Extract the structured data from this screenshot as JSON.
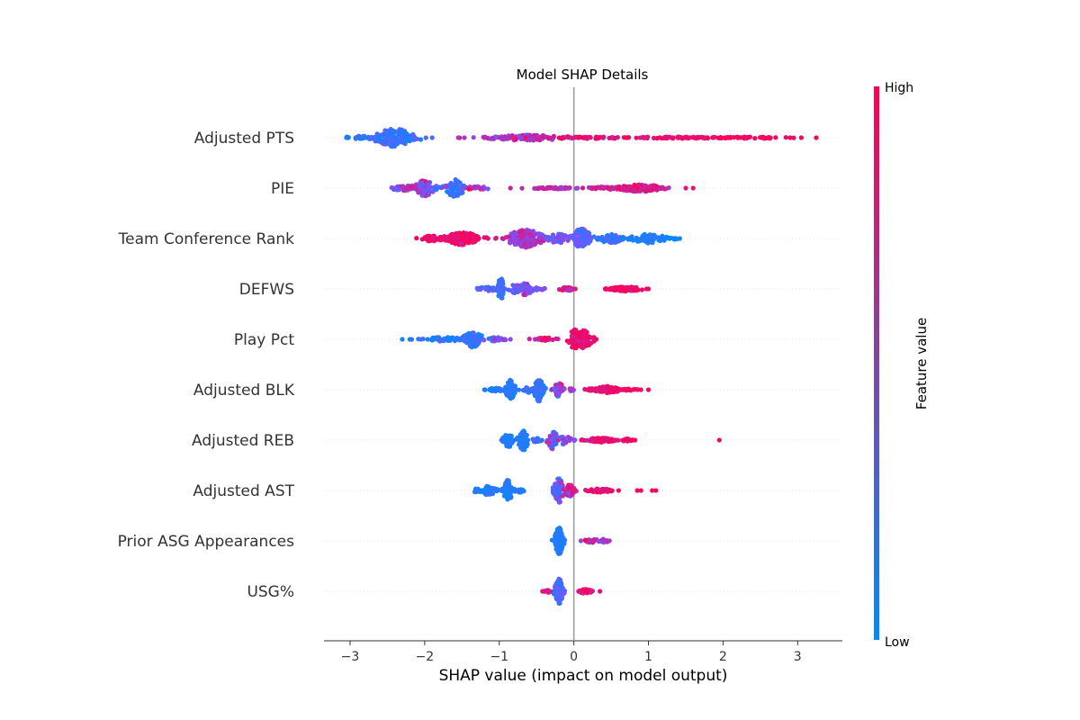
{
  "chart_data": {
    "type": "scatter",
    "subtype": "shap-beeswarm",
    "title": "Model SHAP Details",
    "xlabel": "SHAP value (impact on model output)",
    "ylabel": "",
    "xlim": [
      -3.35,
      3.6
    ],
    "xticks": [
      -3,
      -2,
      -1,
      0,
      1,
      2,
      3
    ],
    "xtick_labels": [
      "−3",
      "−2",
      "−1",
      "0",
      "1",
      "2",
      "3"
    ],
    "grid": false,
    "colorbar": {
      "label": "Feature value",
      "high_label": "High",
      "low_label": "Low",
      "low_color": "#008bfb",
      "high_color": "#ff0052"
    },
    "features": [
      {
        "name": "Adjusted PTS",
        "clusters": [
          {
            "center": -2.4,
            "spread": 0.25,
            "count": 150,
            "color_mean": 0.25,
            "color_sd": 0.12,
            "height": 20
          },
          {
            "center": -2.85,
            "spread": 0.2,
            "count": 30,
            "color_mean": 0.15,
            "color_sd": 0.1,
            "height": 4
          },
          {
            "center": -0.6,
            "spread": 0.5,
            "count": 110,
            "color_mean": 0.72,
            "color_sd": 0.12,
            "height": 6
          },
          {
            "center": 0.3,
            "spread": 0.55,
            "count": 50,
            "color_mean": 0.88,
            "color_sd": 0.07,
            "height": 2
          },
          {
            "center": 1.4,
            "spread": 0.7,
            "count": 70,
            "color_mean": 0.93,
            "color_sd": 0.05,
            "height": 2
          },
          {
            "center": 2.4,
            "spread": 0.45,
            "count": 40,
            "color_mean": 0.95,
            "color_sd": 0.04,
            "height": 2
          }
        ],
        "points": [
          {
            "x": 3.05,
            "c": 0.97
          },
          {
            "x": 3.25,
            "c": 0.97
          },
          {
            "x": 2.9,
            "c": 0.95
          },
          {
            "x": -0.7,
            "c": 0.6
          },
          {
            "x": -1.2,
            "c": 0.7
          },
          {
            "x": -1.55,
            "c": 0.65
          },
          {
            "x": -3.05,
            "c": 0.1
          },
          {
            "x": -1.9,
            "c": 0.3
          }
        ]
      },
      {
        "name": "PIE",
        "clusters": [
          {
            "center": -1.6,
            "spread": 0.12,
            "count": 60,
            "color_mean": 0.25,
            "color_sd": 0.12,
            "height": 20
          },
          {
            "center": -2.0,
            "spread": 0.12,
            "count": 60,
            "color_mean": 0.55,
            "color_sd": 0.2,
            "height": 18
          },
          {
            "center": -2.25,
            "spread": 0.2,
            "count": 35,
            "color_mean": 0.55,
            "color_sd": 0.2,
            "height": 6
          },
          {
            "center": -1.3,
            "spread": 0.15,
            "count": 20,
            "color_mean": 0.7,
            "color_sd": 0.15,
            "height": 4
          },
          {
            "center": -0.3,
            "spread": 0.3,
            "count": 50,
            "color_mean": 0.75,
            "color_sd": 0.1,
            "height": 2
          },
          {
            "center": 0.9,
            "spread": 0.3,
            "count": 150,
            "color_mean": 0.85,
            "color_sd": 0.08,
            "height": 8
          },
          {
            "center": 0.4,
            "spread": 0.2,
            "count": 25,
            "color_mean": 0.82,
            "color_sd": 0.08,
            "height": 3
          }
        ],
        "points": [
          {
            "x": 1.6,
            "c": 0.9
          },
          {
            "x": 1.5,
            "c": 0.88
          },
          {
            "x": -0.85,
            "c": 0.8
          },
          {
            "x": 0.25,
            "c": 0.8
          },
          {
            "x": -2.4,
            "c": 0.45
          }
        ]
      },
      {
        "name": "Team Conference Rank",
        "clusters": [
          {
            "center": -1.5,
            "spread": 0.22,
            "count": 180,
            "color_mean": 0.93,
            "color_sd": 0.05,
            "height": 14
          },
          {
            "center": -1.9,
            "spread": 0.15,
            "count": 40,
            "color_mean": 0.92,
            "color_sd": 0.05,
            "height": 6
          },
          {
            "center": -0.65,
            "spread": 0.22,
            "count": 150,
            "color_mean": 0.67,
            "color_sd": 0.1,
            "height": 20
          },
          {
            "center": -0.2,
            "spread": 0.15,
            "count": 50,
            "color_mean": 0.48,
            "color_sd": 0.1,
            "height": 10
          },
          {
            "center": 0.1,
            "spread": 0.12,
            "count": 80,
            "color_mean": 0.35,
            "color_sd": 0.1,
            "height": 22
          },
          {
            "center": 0.5,
            "spread": 0.15,
            "count": 50,
            "color_mean": 0.2,
            "color_sd": 0.1,
            "height": 10
          },
          {
            "center": 1.0,
            "spread": 0.22,
            "count": 70,
            "color_mean": 0.1,
            "color_sd": 0.06,
            "height": 10
          },
          {
            "center": 1.3,
            "spread": 0.08,
            "count": 10,
            "color_mean": 0.05,
            "color_sd": 0.05,
            "height": 3
          }
        ],
        "points": [
          {
            "x": 1.42,
            "c": 0.05
          },
          {
            "x": -1.05,
            "c": 0.85
          },
          {
            "x": -1.15,
            "c": 0.9
          },
          {
            "x": -2.0,
            "c": 0.95
          }
        ]
      },
      {
        "name": "DEFWS",
        "clusters": [
          {
            "center": -0.98,
            "spread": 0.04,
            "count": 50,
            "color_mean": 0.25,
            "color_sd": 0.08,
            "height": 24
          },
          {
            "center": -1.15,
            "spread": 0.12,
            "count": 30,
            "color_mean": 0.3,
            "color_sd": 0.12,
            "height": 5
          },
          {
            "center": -0.65,
            "spread": 0.08,
            "count": 40,
            "color_mean": 0.5,
            "color_sd": 0.12,
            "height": 14
          },
          {
            "center": -0.78,
            "spread": 0.08,
            "count": 20,
            "color_mean": 0.45,
            "color_sd": 0.12,
            "height": 10
          },
          {
            "center": -0.5,
            "spread": 0.1,
            "count": 15,
            "color_mean": 0.55,
            "color_sd": 0.1,
            "height": 3
          },
          {
            "center": -0.1,
            "spread": 0.1,
            "count": 25,
            "color_mean": 0.85,
            "color_sd": 0.08,
            "height": 4
          },
          {
            "center": 0.7,
            "spread": 0.2,
            "count": 100,
            "color_mean": 0.94,
            "color_sd": 0.04,
            "height": 5
          }
        ],
        "points": [
          {
            "x": 1.0,
            "c": 0.95
          },
          {
            "x": 0.42,
            "c": 0.93
          },
          {
            "x": 0.02,
            "c": 0.85
          }
        ]
      },
      {
        "name": "Play Pct",
        "clusters": [
          {
            "center": -1.35,
            "spread": 0.12,
            "count": 80,
            "color_mean": 0.25,
            "color_sd": 0.12,
            "height": 18
          },
          {
            "center": -1.75,
            "spread": 0.22,
            "count": 50,
            "color_mean": 0.15,
            "color_sd": 0.1,
            "height": 5
          },
          {
            "center": -1.05,
            "spread": 0.12,
            "count": 25,
            "color_mean": 0.4,
            "color_sd": 0.15,
            "height": 5
          },
          {
            "center": -0.4,
            "spread": 0.15,
            "count": 25,
            "color_mean": 0.82,
            "color_sd": 0.1,
            "height": 4
          },
          {
            "center": 0.0,
            "spread": 0.06,
            "count": 40,
            "color_mean": 0.92,
            "color_sd": 0.05,
            "height": 24
          },
          {
            "center": 0.12,
            "spread": 0.12,
            "count": 120,
            "color_mean": 0.9,
            "color_sd": 0.06,
            "height": 20
          }
        ],
        "points": [
          {
            "x": -2.3,
            "c": 0.05
          },
          {
            "x": -2.2,
            "c": 0.1
          },
          {
            "x": -0.85,
            "c": 0.55
          },
          {
            "x": 0.3,
            "c": 0.95
          },
          {
            "x": -2.05,
            "c": 0.3
          }
        ]
      },
      {
        "name": "Adjusted BLK",
        "clusters": [
          {
            "center": -0.85,
            "spread": 0.06,
            "count": 60,
            "color_mean": 0.12,
            "color_sd": 0.07,
            "height": 22
          },
          {
            "center": -1.05,
            "spread": 0.1,
            "count": 30,
            "color_mean": 0.12,
            "color_sd": 0.07,
            "height": 4
          },
          {
            "center": -0.47,
            "spread": 0.06,
            "count": 60,
            "color_mean": 0.18,
            "color_sd": 0.08,
            "height": 26
          },
          {
            "center": -0.6,
            "spread": 0.08,
            "count": 20,
            "color_mean": 0.2,
            "color_sd": 0.08,
            "height": 6
          },
          {
            "center": -0.2,
            "spread": 0.06,
            "count": 40,
            "color_mean": 0.55,
            "color_sd": 0.2,
            "height": 16
          },
          {
            "center": -0.05,
            "spread": 0.06,
            "count": 10,
            "color_mean": 0.6,
            "color_sd": 0.15,
            "height": 3
          },
          {
            "center": 0.45,
            "spread": 0.15,
            "count": 60,
            "color_mean": 0.92,
            "color_sd": 0.05,
            "height": 8
          },
          {
            "center": 0.25,
            "spread": 0.1,
            "count": 15,
            "color_mean": 0.9,
            "color_sd": 0.05,
            "height": 3
          },
          {
            "center": 0.75,
            "spread": 0.1,
            "count": 15,
            "color_mean": 0.93,
            "color_sd": 0.04,
            "height": 2
          }
        ],
        "points": [
          {
            "x": 1.0,
            "c": 0.95
          },
          {
            "x": 0.9,
            "c": 0.93
          },
          {
            "x": -1.2,
            "c": 0.1
          }
        ]
      },
      {
        "name": "Adjusted REB",
        "clusters": [
          {
            "center": -0.68,
            "spread": 0.06,
            "count": 45,
            "color_mean": 0.12,
            "color_sd": 0.07,
            "height": 24
          },
          {
            "center": -0.88,
            "spread": 0.06,
            "count": 30,
            "color_mean": 0.12,
            "color_sd": 0.07,
            "height": 16
          },
          {
            "center": -0.5,
            "spread": 0.08,
            "count": 15,
            "color_mean": 0.25,
            "color_sd": 0.1,
            "height": 4
          },
          {
            "center": -0.28,
            "spread": 0.06,
            "count": 40,
            "color_mean": 0.45,
            "color_sd": 0.2,
            "height": 22
          },
          {
            "center": -0.12,
            "spread": 0.08,
            "count": 30,
            "color_mean": 0.6,
            "color_sd": 0.15,
            "height": 10
          },
          {
            "center": 0.35,
            "spread": 0.18,
            "count": 60,
            "color_mean": 0.92,
            "color_sd": 0.05,
            "height": 5
          },
          {
            "center": 0.7,
            "spread": 0.08,
            "count": 15,
            "color_mean": 0.93,
            "color_sd": 0.05,
            "height": 3
          }
        ],
        "points": [
          {
            "x": 1.95,
            "c": 0.95
          },
          {
            "x": 0.82,
            "c": 0.95
          },
          {
            "x": 0.1,
            "c": 0.9
          }
        ]
      },
      {
        "name": "Adjusted AST",
        "clusters": [
          {
            "center": -0.88,
            "spread": 0.06,
            "count": 60,
            "color_mean": 0.12,
            "color_sd": 0.07,
            "height": 24
          },
          {
            "center": -1.15,
            "spread": 0.1,
            "count": 50,
            "color_mean": 0.12,
            "color_sd": 0.07,
            "height": 10
          },
          {
            "center": -1.3,
            "spread": 0.06,
            "count": 10,
            "color_mean": 0.1,
            "color_sd": 0.06,
            "height": 4
          },
          {
            "center": -0.72,
            "spread": 0.05,
            "count": 10,
            "color_mean": 0.2,
            "color_sd": 0.1,
            "height": 5
          },
          {
            "center": -0.2,
            "spread": 0.06,
            "count": 70,
            "color_mean": 0.45,
            "color_sd": 0.2,
            "height": 28
          },
          {
            "center": -0.05,
            "spread": 0.06,
            "count": 30,
            "color_mean": 0.8,
            "color_sd": 0.12,
            "height": 14
          },
          {
            "center": 0.35,
            "spread": 0.15,
            "count": 40,
            "color_mean": 0.92,
            "color_sd": 0.05,
            "height": 4
          }
        ],
        "points": [
          {
            "x": 0.9,
            "c": 0.95
          },
          {
            "x": 0.85,
            "c": 0.95
          },
          {
            "x": 1.05,
            "c": 0.95
          },
          {
            "x": 1.1,
            "c": 0.95
          },
          {
            "x": 0.6,
            "c": 0.95
          }
        ]
      },
      {
        "name": "Prior ASG Appearances",
        "clusters": [
          {
            "center": -0.2,
            "spread": 0.05,
            "count": 150,
            "color_mean": 0.12,
            "color_sd": 0.07,
            "height": 30
          },
          {
            "center": 0.25,
            "spread": 0.1,
            "count": 25,
            "color_mean": 0.75,
            "color_sd": 0.15,
            "height": 4
          },
          {
            "center": 0.4,
            "spread": 0.06,
            "count": 10,
            "color_mean": 0.6,
            "color_sd": 0.15,
            "height": 4
          }
        ],
        "points": [
          {
            "x": 0.45,
            "c": 0.7
          }
        ]
      },
      {
        "name": "USG%",
        "clusters": [
          {
            "center": -0.2,
            "spread": 0.05,
            "count": 110,
            "color_mean": 0.3,
            "color_sd": 0.15,
            "height": 28
          },
          {
            "center": 0.15,
            "spread": 0.08,
            "count": 40,
            "color_mean": 0.9,
            "color_sd": 0.06,
            "height": 5
          },
          {
            "center": -0.35,
            "spread": 0.04,
            "count": 10,
            "color_mean": 0.85,
            "color_sd": 0.08,
            "height": 3
          }
        ],
        "points": [
          {
            "x": 0.35,
            "c": 0.92
          },
          {
            "x": -0.42,
            "c": 0.9
          }
        ]
      }
    ]
  }
}
